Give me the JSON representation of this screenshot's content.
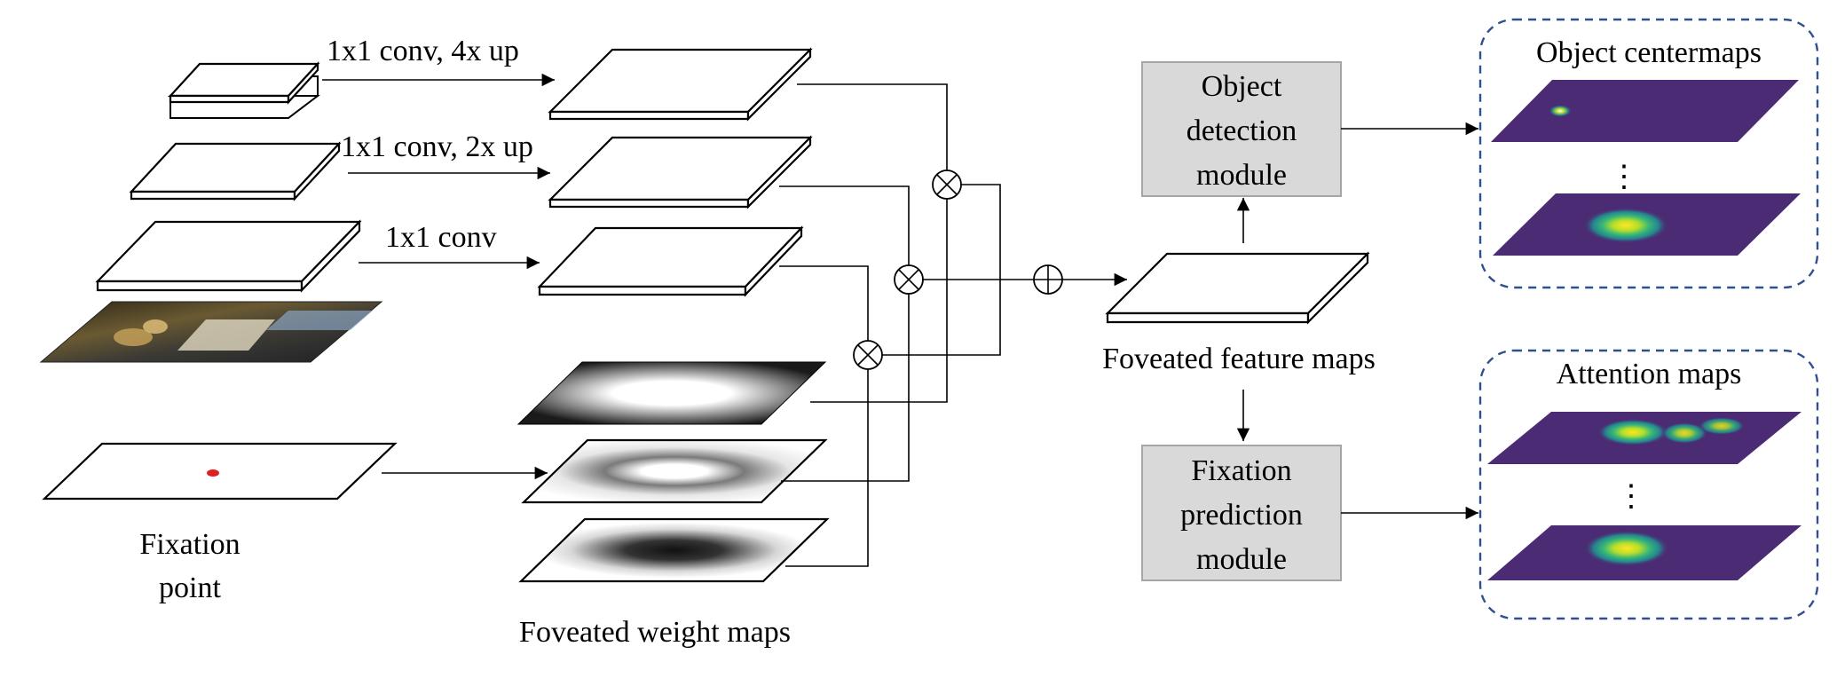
{
  "labels": {
    "conv_4x": "1x1 conv, 4x up",
    "conv_2x": "1x1 conv, 2x up",
    "conv_1x": "1x1 conv",
    "fixation_point_line1": "Fixation",
    "fixation_point_line2": "point",
    "foveated_weight_maps": "Foveated weight maps",
    "foveated_feature_maps": "Foveated feature maps"
  },
  "modules": {
    "object_detection": [
      "Object",
      "detection",
      "module"
    ],
    "fixation_prediction": [
      "Fixation",
      "prediction",
      "module"
    ]
  },
  "outputs": {
    "object_centermaps": "Object centermaps",
    "attention_maps": "Attention maps",
    "ellipsis": "⋮"
  },
  "operators": {
    "multiply": "⊗",
    "add": "⊕"
  },
  "colors": {
    "module_fill": "#d9d9d9",
    "module_stroke": "#a6a6a6",
    "output_box_stroke": "#2f4f8f",
    "heatmap_bg": "#4b2b73",
    "fixation_dot": "#e02020"
  }
}
